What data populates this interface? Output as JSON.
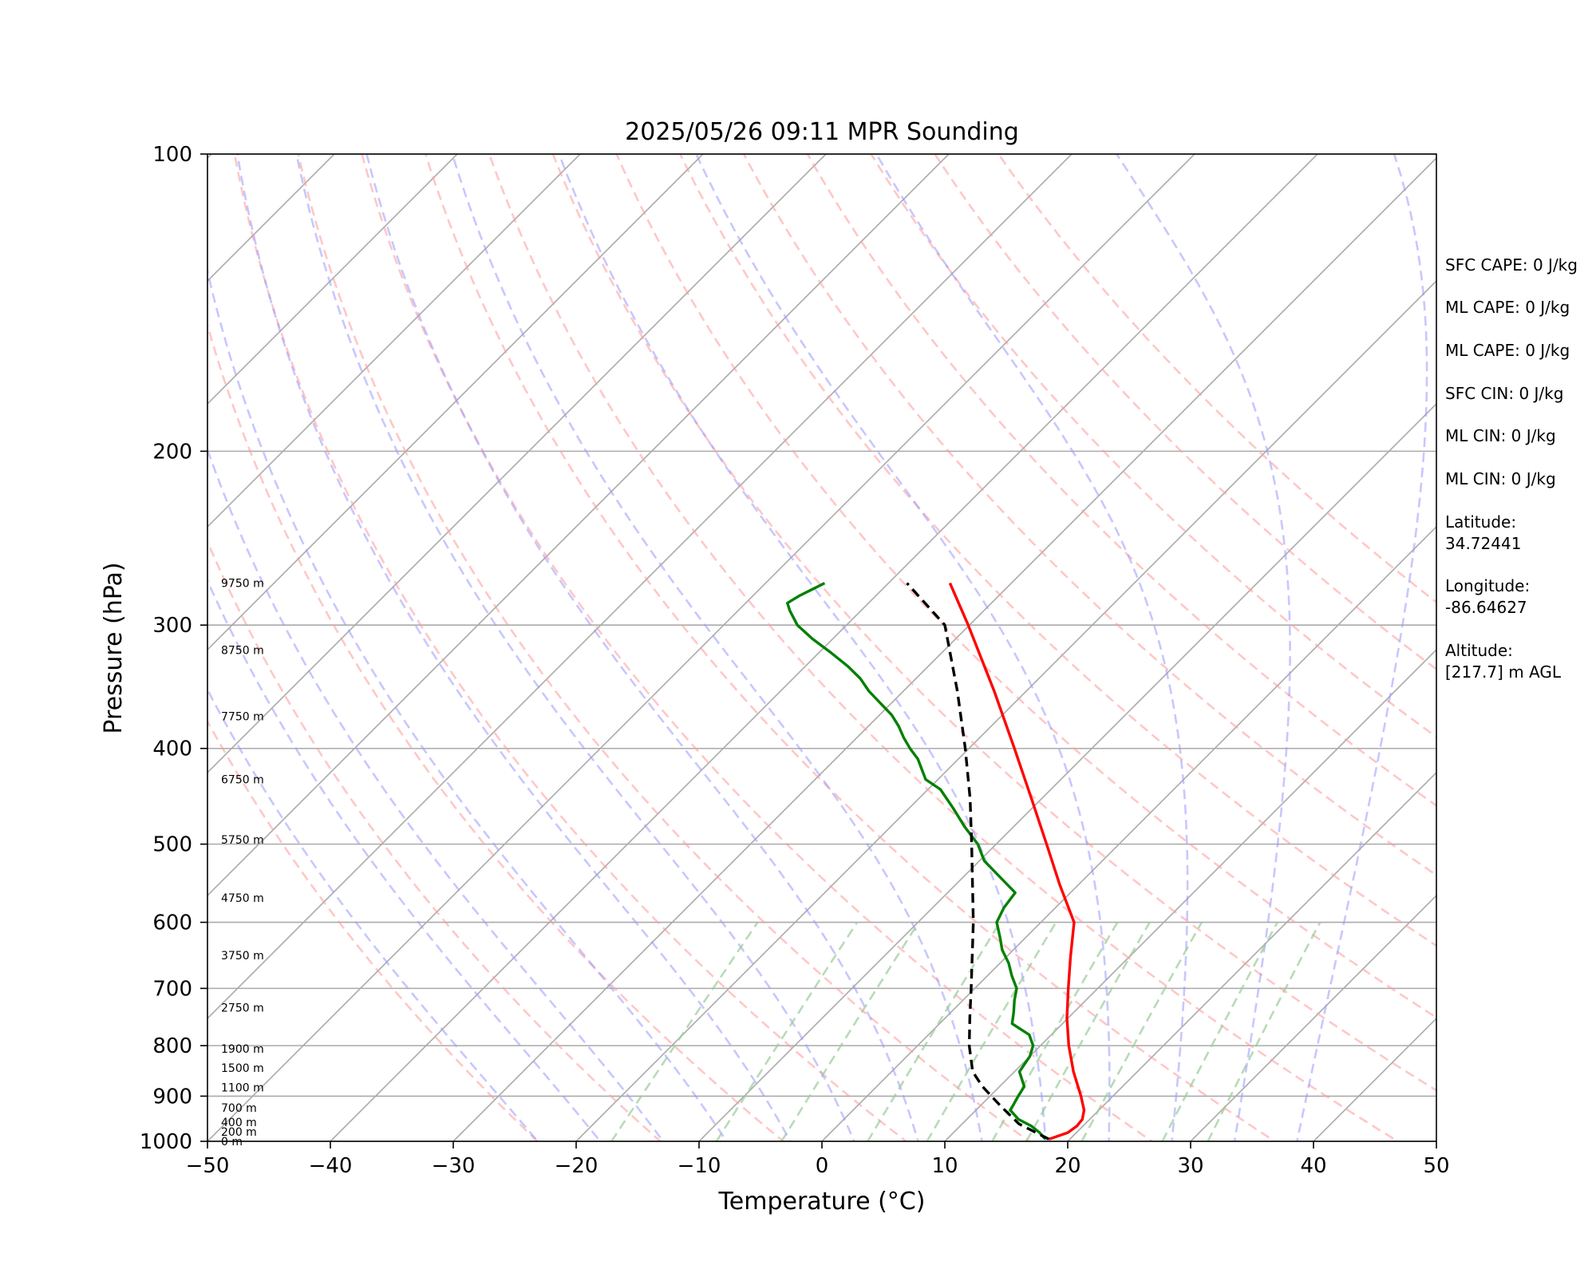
{
  "chart_data": {
    "type": "line",
    "title": "2025/05/26 09:11 MPR Sounding",
    "xlabel": "Temperature (°C)",
    "ylabel": "Pressure (hPa)",
    "xlim": [
      -50,
      50
    ],
    "ylim": [
      1000,
      100
    ],
    "yscale": "log",
    "skew": true,
    "grid": true,
    "x_ticks": [
      "−50",
      "−40",
      "−30",
      "−20",
      "−10",
      "0",
      "10",
      "20",
      "30",
      "40",
      "50"
    ],
    "y_ticks": [
      "1000",
      "900",
      "800",
      "700",
      "600",
      "500",
      "400",
      "300",
      "200",
      "100"
    ],
    "height_labels": [
      "0 m",
      "200 m",
      "400 m",
      "700 m",
      "1100 m",
      "1500 m",
      "1900 m",
      "2750 m",
      "3750 m",
      "4750 m",
      "5750 m",
      "6750 m",
      "7750 m",
      "8750 m",
      "9750 m"
    ],
    "height_pressures": [
      1000,
      978,
      956,
      925,
      882,
      843,
      806,
      732,
      648,
      567,
      495,
      430,
      371,
      318,
      272
    ],
    "colors": {
      "temperature": "#ff0000",
      "dewpoint": "#008000",
      "parcel": "#000000",
      "dry_adiabats": "#ff9999",
      "moist_adiabats": "#9999ff",
      "mixing_ratio": "#99cc99",
      "isotherms": "#999999"
    },
    "series": [
      {
        "key": "temperature",
        "pressure": [
          995,
          980,
          965,
          950,
          930,
          900,
          850,
          800,
          750,
          700,
          650,
          600,
          550,
          500,
          450,
          400,
          350,
          300,
          272
        ],
        "values": [
          18.3,
          19.3,
          19.5,
          19.4,
          18.8,
          17.4,
          14.8,
          12.3,
          9.9,
          7.6,
          5.2,
          2.7,
          -1.5,
          -5.9,
          -10.8,
          -16.3,
          -22.6,
          -30.1,
          -35.0
        ]
      },
      {
        "key": "dewpoint",
        "pressure": [
          995,
          980,
          965,
          950,
          930,
          900,
          880,
          850,
          820,
          800,
          780,
          760,
          740,
          720,
          700,
          680,
          660,
          640,
          620,
          600,
          580,
          560,
          540,
          520,
          500,
          480,
          460,
          440,
          430,
          410,
          400,
          390,
          380,
          370,
          350,
          340,
          330,
          320,
          310,
          300,
          290,
          285,
          280,
          272
        ],
        "values": [
          18.0,
          17.0,
          15.8,
          14.2,
          12.8,
          12.3,
          12.0,
          10.4,
          10.0,
          9.4,
          8.2,
          5.9,
          5.1,
          4.2,
          3.4,
          2.0,
          0.7,
          -0.9,
          -2.2,
          -3.6,
          -4.2,
          -4.5,
          -7.0,
          -9.6,
          -11.5,
          -14.0,
          -16.4,
          -19.0,
          -21.0,
          -23.3,
          -24.8,
          -26.2,
          -27.5,
          -29.0,
          -32.8,
          -34.5,
          -36.6,
          -39.0,
          -41.6,
          -44.0,
          -45.8,
          -46.6,
          -46.2,
          -45.2
        ]
      },
      {
        "key": "parcel",
        "pressure": [
          995,
          960,
          920,
          880,
          850,
          800,
          750,
          700,
          650,
          600,
          550,
          500,
          450,
          400,
          350,
          300,
          272
        ],
        "values": [
          18.3,
          14.6,
          11.6,
          8.6,
          6.6,
          4.2,
          2.0,
          -0.3,
          -2.8,
          -5.5,
          -8.6,
          -12.0,
          -15.8,
          -20.3,
          -25.6,
          -32.0,
          -38.5
        ]
      }
    ],
    "dry_adiabat_thetas": [
      250,
      260,
      270,
      280,
      290,
      300,
      310,
      320,
      330,
      340,
      350,
      360,
      370,
      380,
      390,
      400
    ],
    "moist_adiabat_surface_temps": [
      -20,
      -15,
      -10,
      -5,
      0,
      5,
      10,
      15,
      20,
      25,
      30,
      35,
      40
    ],
    "mixing_ratios": [
      1,
      2,
      3,
      5,
      7,
      10,
      12,
      16,
      24,
      30
    ],
    "stats": [
      "SFC CAPE: 0 J/kg",
      "ML CAPE: 0 J/kg",
      "ML CAPE: 0 J/kg",
      "SFC CIN: 0 J/kg",
      "ML CIN: 0 J/kg",
      "ML CIN: 0 J/kg"
    ],
    "latitude_label": "Latitude:",
    "latitude": "34.72441",
    "longitude_label": "Longitude:",
    "longitude": "-86.64627",
    "altitude_label": "Altitude:",
    "altitude": "[217.7] m AGL"
  }
}
